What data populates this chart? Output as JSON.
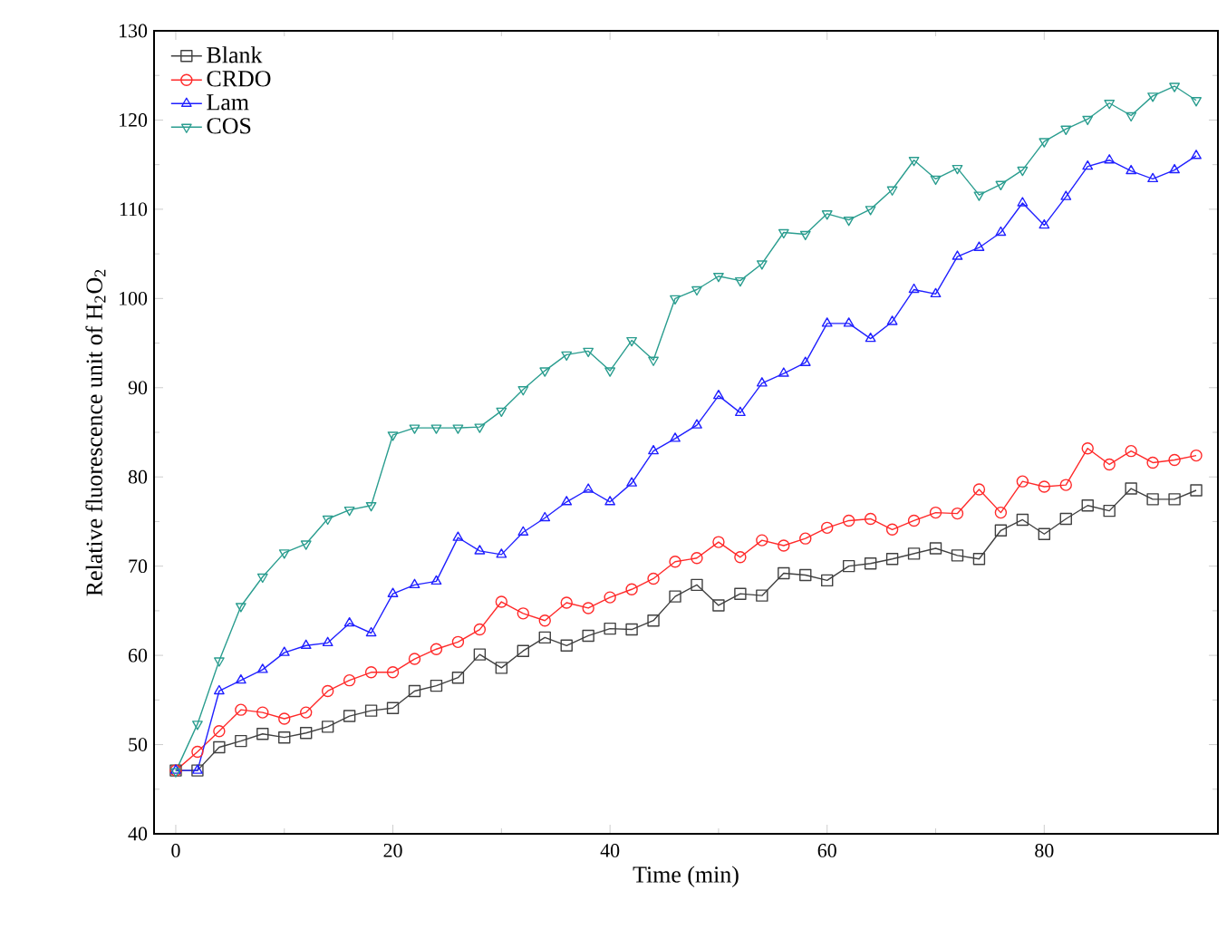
{
  "chart_data": {
    "type": "line",
    "xlabel": "Time (min)",
    "ylabel": "Relative fluorescence unit of H$_{2}$O$_{2}$",
    "x": [
      0,
      2,
      4,
      6,
      8,
      10,
      12,
      14,
      16,
      18,
      20,
      22,
      24,
      26,
      28,
      30,
      32,
      34,
      36,
      38,
      40,
      42,
      44,
      46,
      48,
      50,
      52,
      54,
      56,
      58,
      60,
      62,
      64,
      66,
      68,
      70,
      72,
      74,
      76,
      78,
      80,
      82,
      84,
      86,
      88,
      90,
      92,
      94
    ],
    "xlim": [
      -2,
      96
    ],
    "xticks": [
      0,
      20,
      40,
      60,
      80
    ],
    "ylim": [
      40,
      130
    ],
    "yticks": [
      40,
      50,
      60,
      70,
      80,
      90,
      100,
      110,
      120,
      130
    ],
    "legend": "top left",
    "grid": false,
    "line_style": "solid",
    "series": [
      {
        "name": "Blank",
        "color": "#404040",
        "marker": "square",
        "values": [
          47.1,
          47.1,
          49.7,
          50.4,
          51.2,
          50.8,
          51.3,
          52,
          53.2,
          53.8,
          54.1,
          56,
          56.6,
          57.5,
          60.1,
          58.6,
          60.5,
          62,
          61.1,
          62.2,
          63,
          62.9,
          63.9,
          66.6,
          67.9,
          65.6,
          66.9,
          66.7,
          69.2,
          69,
          68.4,
          70,
          70.3,
          70.8,
          71.4,
          72,
          71.2,
          70.8,
          74,
          75.2,
          73.6,
          75.3,
          76.8,
          76.2,
          78.7,
          77.5,
          77.5,
          78.5
        ]
      },
      {
        "name": "CRDO",
        "color": "#ff2a2a",
        "marker": "circle",
        "values": [
          47.1,
          49.2,
          51.5,
          53.9,
          53.6,
          52.9,
          53.6,
          56,
          57.2,
          58.1,
          58.1,
          59.6,
          60.7,
          61.5,
          62.9,
          66,
          64.7,
          63.9,
          65.9,
          65.3,
          66.5,
          67.4,
          68.6,
          70.5,
          70.9,
          72.7,
          71,
          72.9,
          72.3,
          73.1,
          74.3,
          75.1,
          75.3,
          74.1,
          75.1,
          76,
          75.9,
          78.6,
          76,
          79.5,
          78.9,
          79.1,
          83.2,
          81.4,
          82.9,
          81.6,
          81.9,
          82.4
        ]
      },
      {
        "name": "Lam",
        "color": "#2020ff",
        "marker": "triangle",
        "values": [
          47.1,
          47.1,
          56,
          57.2,
          58.4,
          60.3,
          61.1,
          61.4,
          63.6,
          62.5,
          66.9,
          67.9,
          68.3,
          73.2,
          71.7,
          71.3,
          73.8,
          75.4,
          77.2,
          78.6,
          77.2,
          79.3,
          82.9,
          84.3,
          85.8,
          89.1,
          87.2,
          90.5,
          91.6,
          92.8,
          97.2,
          97.2,
          95.5,
          97.4,
          101,
          100.5,
          104.7,
          105.7,
          107.4,
          110.7,
          108.2,
          111.4,
          114.8,
          115.5,
          114.3,
          113.4,
          114.4,
          116
        ]
      },
      {
        "name": "COS",
        "color": "#2a9d8f",
        "marker": "triangle_down",
        "values": [
          47,
          52.3,
          59.4,
          65.5,
          68.8,
          71.5,
          72.5,
          75.3,
          76.3,
          76.8,
          84.7,
          85.5,
          85.5,
          85.5,
          85.6,
          87.4,
          89.8,
          91.9,
          93.7,
          94.1,
          91.9,
          95.3,
          93.1,
          100,
          101,
          102.5,
          102,
          103.9,
          107.4,
          107.2,
          109.5,
          108.8,
          110,
          112.2,
          115.5,
          113.4,
          114.6,
          111.6,
          112.8,
          114.4,
          117.6,
          119,
          120.1,
          121.9,
          120.5,
          122.7,
          123.8,
          122.2
        ]
      }
    ]
  }
}
